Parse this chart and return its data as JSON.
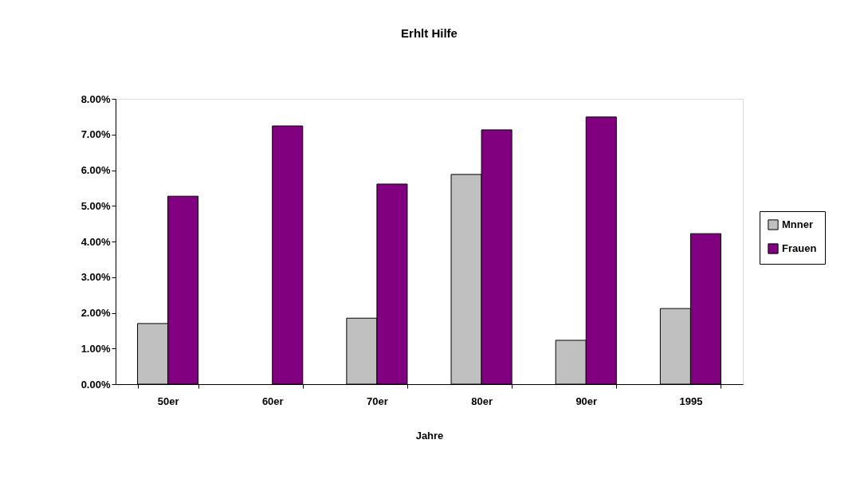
{
  "chart_data": {
    "type": "bar",
    "title": "Erhlt Hilfe",
    "xlabel": "Jahre",
    "categories": [
      "50er",
      "60er",
      "70er",
      "80er",
      "90er",
      "1995"
    ],
    "series": [
      {
        "name": "Mnner",
        "color": "#c0c0c0",
        "values": [
          1.7,
          null,
          1.85,
          5.88,
          1.23,
          2.12
        ]
      },
      {
        "name": "Frauen",
        "color": "#800080",
        "values": [
          5.27,
          7.24,
          5.61,
          7.13,
          7.49,
          4.22
        ]
      }
    ],
    "ylim": [
      0,
      8
    ],
    "yticks": [
      {
        "value": 0,
        "label": "0.00%"
      },
      {
        "value": 1,
        "label": "1.00%"
      },
      {
        "value": 2,
        "label": "2.00%"
      },
      {
        "value": 3,
        "label": "3.00%"
      },
      {
        "value": 4,
        "label": "4.00%"
      },
      {
        "value": 5,
        "label": "5.00%"
      },
      {
        "value": 6,
        "label": "6.00%"
      },
      {
        "value": 7,
        "label": "7.00%"
      },
      {
        "value": 8,
        "label": "8.00%"
      }
    ],
    "grid": false,
    "legend": "right"
  }
}
